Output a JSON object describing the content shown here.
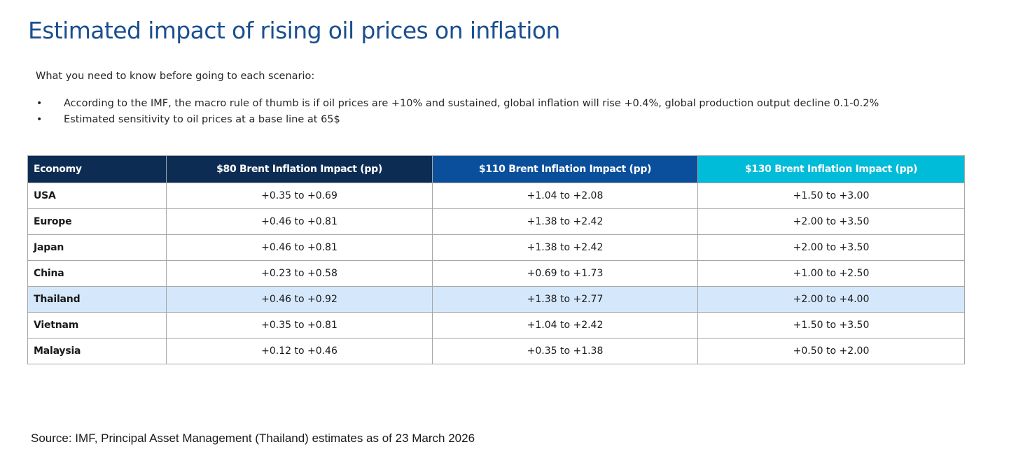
{
  "title": "Estimated impact of rising oil prices on inflation",
  "intro": "What you need to know before going to each scenario:",
  "bullets": [
    "According to the IMF, the macro rule of thumb is if oil prices are +10% and sustained, global inflation will rise +0.4%, global production output decline 0.1-0.2%",
    "Estimated sensitivity to oil prices at a base line at 65$"
  ],
  "bullet_symbol": "•",
  "table": {
    "headers": [
      "Economy",
      "$80 Brent Inflation Impact (pp)",
      "$110 Brent Inflation Impact (pp)",
      "$130 Brent Inflation Impact (pp)"
    ],
    "header_colors": [
      "#0d2c54",
      "#0d2c54",
      "#0a4f9c",
      "#00bcd9"
    ],
    "highlight_color": "#d5e8fb",
    "rows": [
      {
        "economy": "USA",
        "impact_80": "+0.35 to +0.69",
        "impact_110": "+1.04 to +2.08",
        "impact_130": "+1.50 to +3.00"
      },
      {
        "economy": "Europe",
        "impact_80": "+0.46 to +0.81",
        "impact_110": "+1.38 to +2.42",
        "impact_130": "+2.00 to +3.50"
      },
      {
        "economy": "Japan",
        "impact_80": "+0.46 to +0.81",
        "impact_110": "+1.38 to +2.42",
        "impact_130": "+2.00 to +3.50"
      },
      {
        "economy": "China",
        "impact_80": "+0.23 to +0.58",
        "impact_110": "+0.69 to +1.73",
        "impact_130": "+1.00 to +2.50"
      },
      {
        "economy": "Thailand",
        "impact_80": "+0.46 to +0.92",
        "impact_110": "+1.38 to +2.77",
        "impact_130": "+2.00 to +4.00",
        "highlighted": true
      },
      {
        "economy": "Vietnam",
        "impact_80": "+0.35 to +0.81",
        "impact_110": "+1.04 to +2.42",
        "impact_130": "+1.50 to +3.50"
      },
      {
        "economy": "Malaysia",
        "impact_80": "+0.12 to +0.46",
        "impact_110": "+0.35 to +1.38",
        "impact_130": "+0.50 to +2.00"
      }
    ]
  },
  "source": "Source: IMF, Principal Asset Management (Thailand) estimates as of 23 March 2026"
}
